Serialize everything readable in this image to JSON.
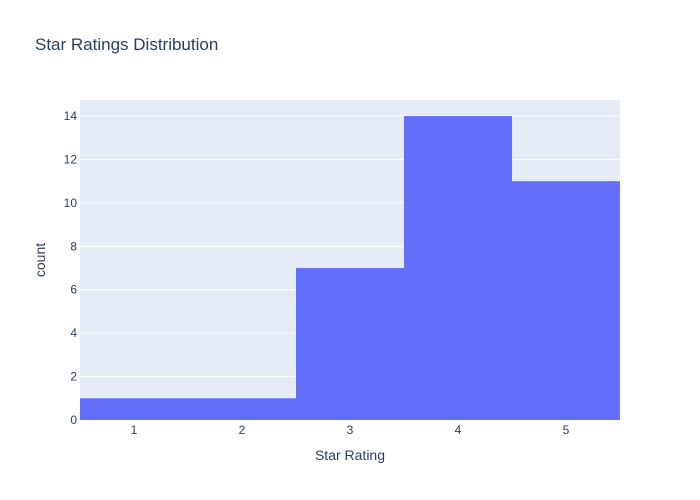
{
  "chart_data": {
    "type": "bar",
    "title": "Star Ratings Distribution",
    "xlabel": "Star Rating",
    "ylabel": "count",
    "categories": [
      "1",
      "2",
      "3",
      "4",
      "5"
    ],
    "values": [
      1,
      1,
      7,
      14,
      11
    ],
    "ylim": [
      0,
      14.74
    ],
    "yticks": [
      "0",
      "2",
      "4",
      "6",
      "8",
      "10",
      "12",
      "14"
    ],
    "grid": true,
    "legend": "none",
    "colors": {
      "bar": "#636efa",
      "plot_bg": "#e5ecf6",
      "grid": "#ffffff",
      "text": "#2a3f5f"
    }
  }
}
